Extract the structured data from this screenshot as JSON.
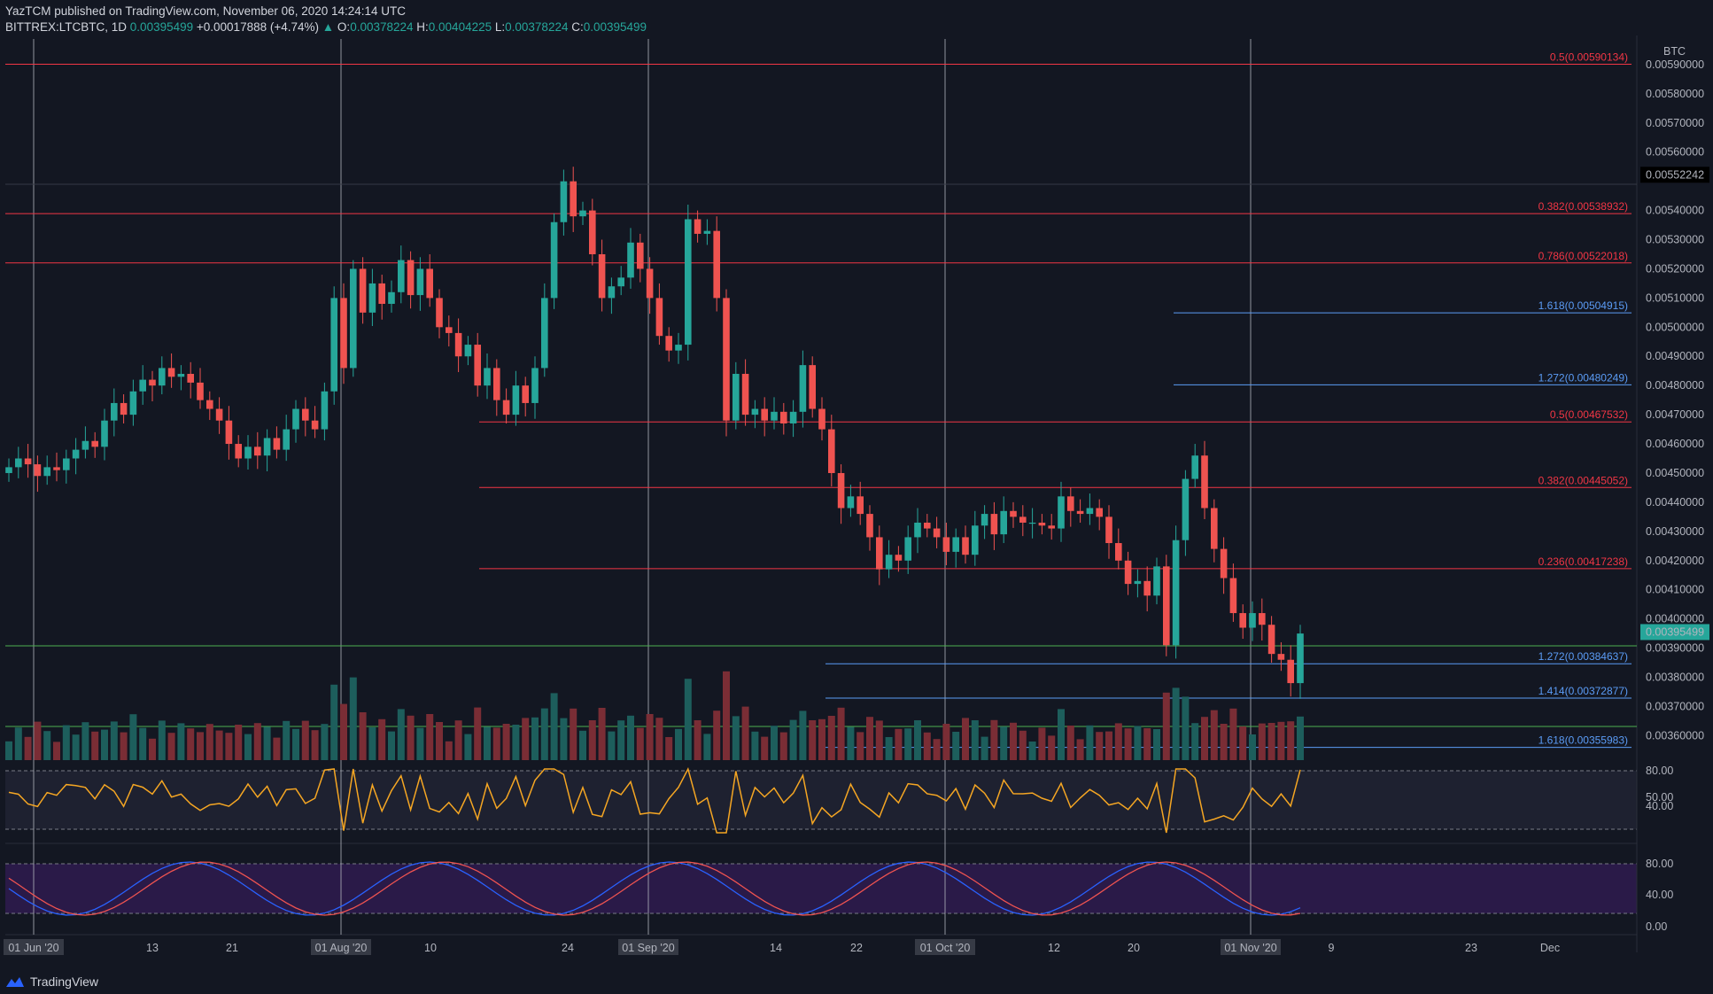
{
  "header": {
    "publisher": "YazTCM",
    "published_text": "published on TradingView.com, November 06, 2020 14:24:14 UTC",
    "symbol": "BITTREX:LTCBTC, 1D",
    "last": "0.00395499",
    "change": "+0.00017888 (+4.74%)",
    "o_label": "O:",
    "o": "0.00378224",
    "h_label": "H:",
    "h": "0.00404225",
    "l_label": "L:",
    "l": "0.00378224",
    "c_label": "C:",
    "c": "0.00395499"
  },
  "brand": "TradingView",
  "currency_label": "BTC",
  "chart_data": {
    "type": "candlestick",
    "price_ticks": [
      "0.00360000",
      "0.00370000",
      "0.00380000",
      "0.00390000",
      "0.00400000",
      "0.00410000",
      "0.00420000",
      "0.00430000",
      "0.00440000",
      "0.00450000",
      "0.00460000",
      "0.00470000",
      "0.00480000",
      "0.00490000",
      "0.00500000",
      "0.00510000",
      "0.00520000",
      "0.00530000",
      "0.00540000",
      "0.00560000",
      "0.00570000",
      "0.00580000",
      "0.00590000"
    ],
    "price_marker": "0.00552242",
    "last_price_label": "0.00395499",
    "x_ticks": [
      "01 Jun '20",
      "13",
      "21",
      "01 Aug '20",
      "10",
      "24",
      "01 Sep '20",
      "14",
      "22",
      "01 Oct '20",
      "12",
      "20",
      "01 Nov '20",
      "9",
      "23",
      "Dec"
    ],
    "fib_levels": [
      {
        "label": "0.5(0.00590134)",
        "price": 0.00590134,
        "color": "#f23645"
      },
      {
        "label": "0.382(0.00538932)",
        "price": 0.00538932,
        "color": "#f23645"
      },
      {
        "label": "0.786(0.00522018)",
        "price": 0.00522018,
        "color": "#f23645"
      },
      {
        "label": "1.618(0.00504915)",
        "price": 0.00504915,
        "color": "#5b9cf6"
      },
      {
        "label": "1.272(0.00480249)",
        "price": 0.00480249,
        "color": "#5b9cf6"
      },
      {
        "label": "0.5(0.00467532)",
        "price": 0.00467532,
        "color": "#f23645"
      },
      {
        "label": "0.382(0.00445052)",
        "price": 0.00445052,
        "color": "#f23645"
      },
      {
        "label": "0.236(0.00417238)",
        "price": 0.00417238,
        "color": "#f23645"
      },
      {
        "label": "1.272(0.00384637)",
        "price": 0.00384637,
        "color": "#5b9cf6"
      },
      {
        "label": "1.414(0.00372877)",
        "price": 0.00372877,
        "color": "#5b9cf6"
      },
      {
        "label": "1.618(0.00355983)",
        "price": 0.00355983,
        "color": "#5b9cf6"
      }
    ],
    "closes": [
      0.00452,
      0.00455,
      0.00453,
      0.00449,
      0.00452,
      0.00451,
      0.00455,
      0.00458,
      0.00461,
      0.00459,
      0.00468,
      0.00474,
      0.0047,
      0.00478,
      0.00482,
      0.0048,
      0.00486,
      0.00483,
      0.00484,
      0.00481,
      0.00475,
      0.00472,
      0.00468,
      0.0046,
      0.00455,
      0.00459,
      0.00456,
      0.00462,
      0.00458,
      0.00465,
      0.00472,
      0.00468,
      0.00465,
      0.00478,
      0.0051,
      0.00486,
      0.0052,
      0.00505,
      0.00515,
      0.00508,
      0.00512,
      0.00523,
      0.00511,
      0.0052,
      0.0051,
      0.005,
      0.00498,
      0.0049,
      0.00494,
      0.0048,
      0.00486,
      0.00475,
      0.0047,
      0.0048,
      0.00474,
      0.00486,
      0.0051,
      0.00536,
      0.0055,
      0.00538,
      0.0054,
      0.00525,
      0.0051,
      0.00514,
      0.00517,
      0.00529,
      0.0052,
      0.0051,
      0.00497,
      0.00492,
      0.00494,
      0.00537,
      0.00532,
      0.00533,
      0.0051,
      0.00468,
      0.00484,
      0.0047,
      0.00472,
      0.00468,
      0.00471,
      0.00467,
      0.00471,
      0.00487,
      0.00472,
      0.00465,
      0.0045,
      0.00438,
      0.00442,
      0.00436,
      0.00428,
      0.00417,
      0.00422,
      0.0042,
      0.00428,
      0.00433,
      0.00431,
      0.00428,
      0.00423,
      0.00428,
      0.00422,
      0.00432,
      0.00436,
      0.00429,
      0.00437,
      0.00435,
      0.00433,
      0.00433,
      0.00432,
      0.00431,
      0.00442,
      0.00437,
      0.00436,
      0.00438,
      0.00435,
      0.00426,
      0.0042,
      0.00412,
      0.00413,
      0.00408,
      0.00418,
      0.00391,
      0.00427,
      0.00448,
      0.00456,
      0.00438,
      0.00424,
      0.00414,
      0.00402,
      0.00397,
      0.00402,
      0.00398,
      0.00388,
      0.00386,
      0.00378,
      0.00395
    ]
  }
}
